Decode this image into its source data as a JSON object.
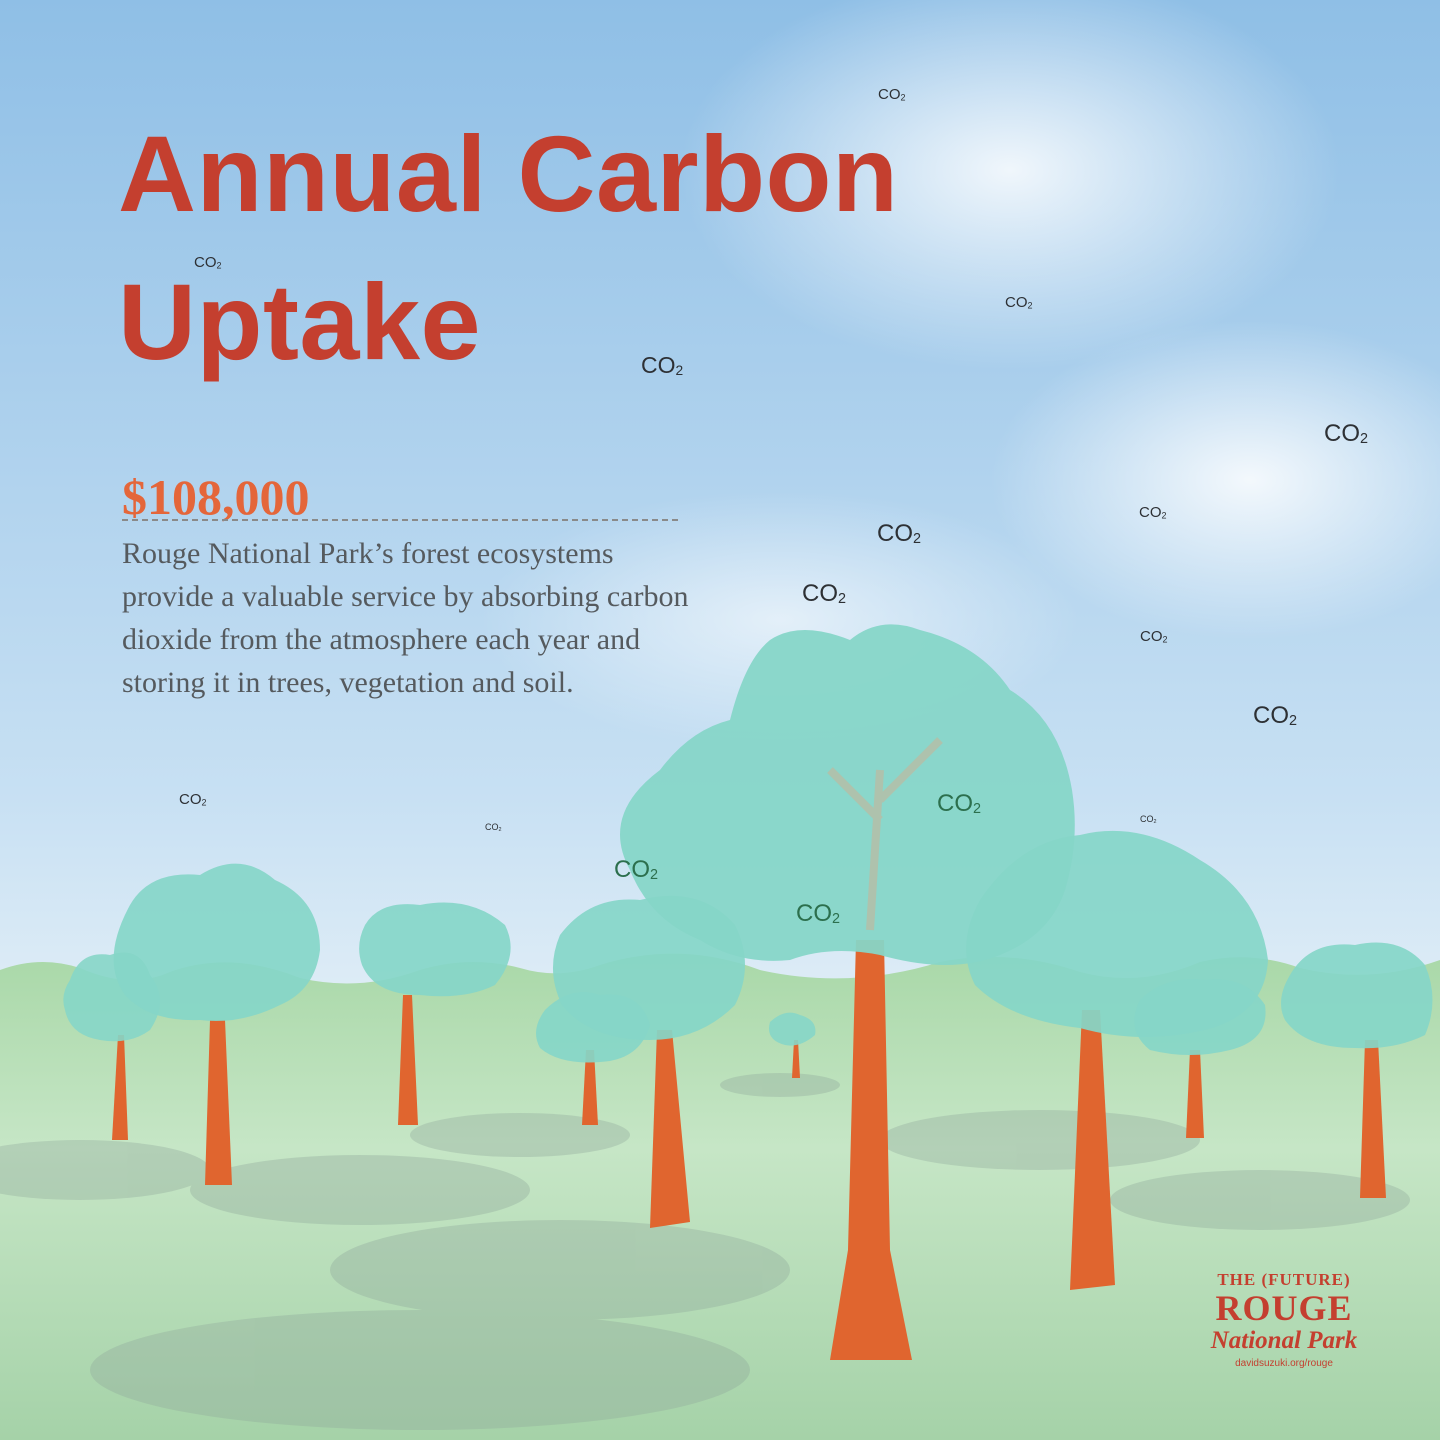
{
  "title": {
    "line1": "Annual Carbon",
    "line2": "Uptake"
  },
  "amount": "$108,000",
  "description": "Rouge National Park’s forest ecosystems provide a valuable service by absorbing carbon dioxide from the atmosphere each year and storing it in trees, vegetation and soil.",
  "co2_label": {
    "base": "CO",
    "sub": "2"
  },
  "logo": {
    "line1": "THE (FUTURE)",
    "line2": "ROUGE",
    "line3": "National Park",
    "url": "davidsuzuki.org/rouge"
  },
  "colors": {
    "title": "#c43f2f",
    "amount": "#e4663a",
    "body_text": "#555a5e",
    "sky_top": "#8fbfe6",
    "sky_bottom": "#e6f1f8",
    "grass": "#b4dcb4",
    "canopy": "#7fd3c6",
    "trunk": "#e0652f"
  }
}
